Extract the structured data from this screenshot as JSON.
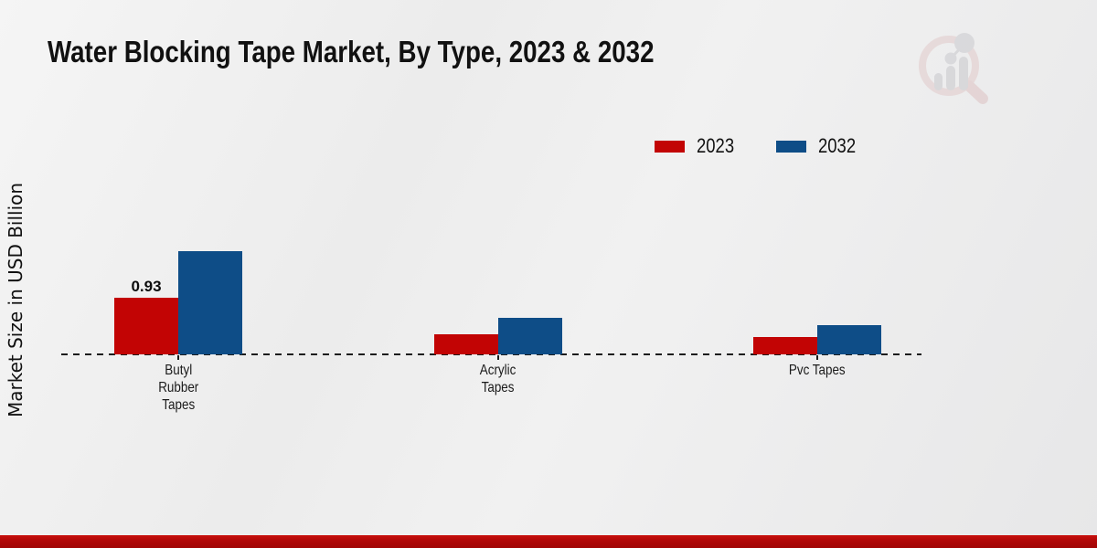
{
  "title": "Water Blocking Tape Market, By Type, 2023 & 2032",
  "ylabel": "Market Size in USD Billion",
  "legend": {
    "items": [
      {
        "label": "2023",
        "color": "#c20404"
      },
      {
        "label": "2032",
        "color": "#0e4d87"
      }
    ]
  },
  "colors": {
    "series_2023": "#c20404",
    "series_2032": "#0e4d87",
    "baseline": "#1c1c1c",
    "footer_red": "#b20808",
    "background": "#ececec"
  },
  "logo": {
    "name": "magnifier-bar-chart-logo"
  },
  "chart_data": {
    "type": "bar",
    "title": "Water Blocking Tape Market, By Type, 2023 & 2032",
    "xlabel": "",
    "ylabel": "Market Size in USD Billion",
    "categories": [
      "Butyl Rubber Tapes",
      "Acrylic Tapes",
      "Pvc Tapes"
    ],
    "category_lines": [
      [
        "Butyl",
        "Rubber",
        "Tapes"
      ],
      [
        "Acrylic",
        "Tapes"
      ],
      [
        "Pvc Tapes"
      ]
    ],
    "series": [
      {
        "name": "2023",
        "color": "#c20404",
        "values": [
          0.93,
          0.33,
          0.28
        ]
      },
      {
        "name": "2032",
        "color": "#0e4d87",
        "values": [
          1.71,
          0.6,
          0.48
        ]
      }
    ],
    "value_labels": [
      {
        "series": "2023",
        "category_index": 0,
        "text": "0.93"
      }
    ],
    "ylim": [
      0,
      1.9
    ],
    "grid": false,
    "legend_position": "upper right",
    "baseline_style": "dashed"
  }
}
